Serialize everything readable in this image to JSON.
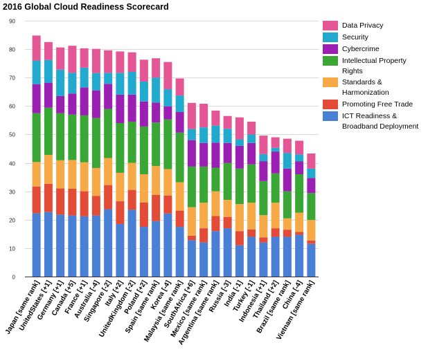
{
  "chart_data": {
    "type": "bar",
    "stacked": true,
    "title": "2016 Global Cloud Readiness Scorecard",
    "xlabel": "",
    "ylabel": "",
    "ylim": [
      0,
      90
    ],
    "yticks": [
      0,
      10,
      20,
      30,
      40,
      50,
      60,
      70,
      80,
      90
    ],
    "grid": true,
    "legend_position": "right",
    "categories": [
      "Japan [same rank]",
      "UnitedStates [+1]",
      "Germany [+1]",
      "Canada [+5]",
      "France [+1]",
      "Australia [-4]",
      "Singapore [-2]",
      "Italy [+2]",
      "UnitedKingdom [-2]",
      "Poland [+2]",
      "Spain [same rank]",
      "Korea [-4]",
      "Malaysia [same rank]",
      "SouthAfrica [+6]",
      "Mexico [same rank]",
      "Argentina [same rank]",
      "Russia [-3]",
      "India [-1]",
      "Turkey [-1]",
      "Indonesia [+1]",
      "Thailand [+2]",
      "Brazil [same rank]",
      "China [-4]",
      "Vietnam [same rank]"
    ],
    "series": [
      {
        "name": "ICT Readiness & Broadband Deployment",
        "color": "#4a7fd6",
        "values": [
          22.3,
          22.7,
          21.8,
          21.5,
          21.2,
          21.5,
          23.7,
          18.5,
          23.5,
          17.5,
          19.5,
          22.2,
          17.5,
          12.8,
          12.0,
          16.0,
          17.0,
          11.0,
          14.0,
          12.0,
          14.0,
          14.0,
          14.7,
          11.5
        ]
      },
      {
        "name": "Promoting Free Trade",
        "color": "#e44b36",
        "values": [
          9.4,
          9.9,
          9.2,
          9.4,
          8.8,
          6.9,
          8.5,
          8.0,
          7.0,
          8.6,
          9.2,
          6.3,
          5.7,
          1.6,
          5.0,
          5.3,
          4.0,
          5.0,
          2.6,
          1.8,
          3.0,
          2.5,
          1.0,
          1.2
        ]
      },
      {
        "name": "Standards & Harmonization",
        "color": "#f7a945",
        "values": [
          8.6,
          10.2,
          9.9,
          10.1,
          10.2,
          9.8,
          9.5,
          10.0,
          9.5,
          9.9,
          10.2,
          9.3,
          10.0,
          10.0,
          9.0,
          8.7,
          6.0,
          9.5,
          9.4,
          7.8,
          9.0,
          4.0,
          6.8,
          7.2
        ]
      },
      {
        "name": "Intellectual Property Rights",
        "color": "#3aa635",
        "values": [
          17.2,
          16.6,
          16.6,
          16.0,
          16.5,
          17.6,
          17.3,
          17.5,
          14.5,
          16.8,
          15.3,
          17.5,
          17.5,
          14.3,
          12.7,
          8.3,
          13.0,
          12.5,
          13.5,
          12.0,
          10.3,
          9.5,
          13.5,
          9.5
        ]
      },
      {
        "name": "Cybercrime",
        "color": "#9b1fb3",
        "values": [
          10.2,
          8.8,
          6.0,
          7.4,
          9.8,
          9.7,
          8.8,
          10.0,
          9.5,
          8.8,
          7.0,
          4.6,
          7.2,
          9.3,
          8.3,
          8.8,
          7.0,
          8.0,
          7.5,
          7.0,
          7.7,
          8.0,
          4.5,
          5.3
        ]
      },
      {
        "name": "Security",
        "color": "#21aacd",
        "values": [
          8.3,
          8.0,
          9.3,
          7.3,
          7.0,
          6.1,
          3.9,
          7.7,
          8.0,
          7.0,
          8.8,
          6.0,
          5.8,
          3.9,
          5.5,
          6.0,
          5.0,
          2.3,
          3.0,
          2.5,
          1.3,
          5.5,
          2.5,
          3.3
        ]
      },
      {
        "name": "Data Privacy",
        "color": "#e55794",
        "values": [
          8.8,
          6.3,
          7.8,
          9.5,
          6.8,
          8.5,
          7.9,
          7.5,
          6.9,
          7.7,
          6.8,
          9.6,
          6.0,
          9.2,
          8.3,
          5.3,
          4.5,
          7.7,
          4.5,
          6.5,
          3.7,
          5.0,
          4.8,
          5.3
        ]
      }
    ],
    "legend": [
      {
        "label_lines": [
          "Data Privacy"
        ],
        "color": "#e55794"
      },
      {
        "label_lines": [
          "Security"
        ],
        "color": "#21aacd"
      },
      {
        "label_lines": [
          "Cybercrime"
        ],
        "color": "#9b1fb3"
      },
      {
        "label_lines": [
          "Intellectual Property",
          "Rights"
        ],
        "color": "#3aa635"
      },
      {
        "label_lines": [
          "Standards &",
          "Harmonization"
        ],
        "color": "#f7a945"
      },
      {
        "label_lines": [
          "Promoting Free Trade"
        ],
        "color": "#e44b36"
      },
      {
        "label_lines": [
          "ICT Readiness &",
          "Broadband Deployment"
        ],
        "color": "#4a7fd6"
      }
    ]
  }
}
